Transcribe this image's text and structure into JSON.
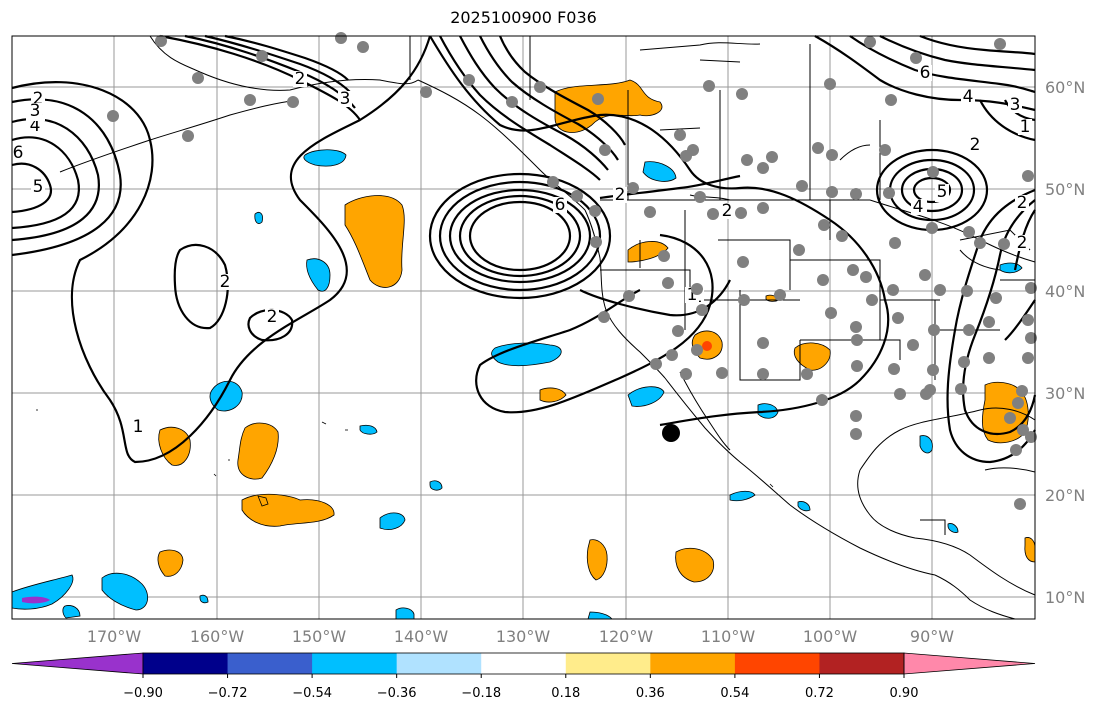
{
  "title": "2025100900 F036",
  "lat_labels": [
    "60°N",
    "50°N",
    "40°N",
    "30°N",
    "20°N",
    "10°N"
  ],
  "lon_labels": [
    "170°W",
    "160°W",
    "150°W",
    "140°W",
    "130°W",
    "120°W",
    "110°W",
    "100°W",
    "90°W"
  ],
  "colorbar": {
    "tick_labels": [
      "−0.90",
      "−0.72",
      "−0.54",
      "−0.36",
      "−0.18",
      "0.18",
      "0.36",
      "0.54",
      "0.72",
      "0.90"
    ],
    "colors": [
      "#9932cc",
      "#00008b",
      "#3a5fcd",
      "#00bfff",
      "#b0e2ff",
      "#ffffff",
      "#ffec8b",
      "#ffa500",
      "#ff4500",
      "#b22222",
      "#ff88aa"
    ]
  },
  "contour_labels": [
    "2",
    "3",
    "4",
    "6",
    "5",
    "2",
    "2",
    "1",
    "1",
    "6",
    "5",
    "4",
    "3",
    "2",
    "2",
    "6",
    "4",
    "3",
    "2",
    "1",
    "5",
    "4",
    "3",
    "2",
    "2",
    "1",
    "2",
    "3"
  ],
  "colors": {
    "positive": "#ffa500",
    "negative": "#00bfff",
    "strong_negative": "#9932cc",
    "station": "#808080",
    "marker": "#000000"
  }
}
